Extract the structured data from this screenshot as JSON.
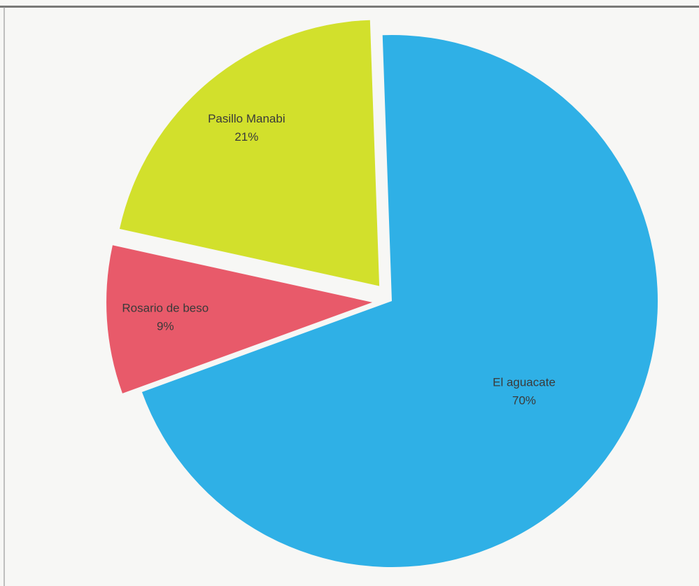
{
  "chart_data": {
    "type": "pie",
    "title": "",
    "slices": [
      {
        "label": "El aguacate",
        "value": 70,
        "display": "70%",
        "color": "#2fb0e6",
        "exploded": false
      },
      {
        "label": "Rosario  de beso",
        "value": 9,
        "display": "9%",
        "color": "#e85a6a",
        "exploded": true
      },
      {
        "label": "Pasillo Manabi",
        "value": 21,
        "display": "21%",
        "color": "#d2e02c",
        "exploded": true
      }
    ],
    "legend": "none",
    "labels_on_slices": true
  }
}
